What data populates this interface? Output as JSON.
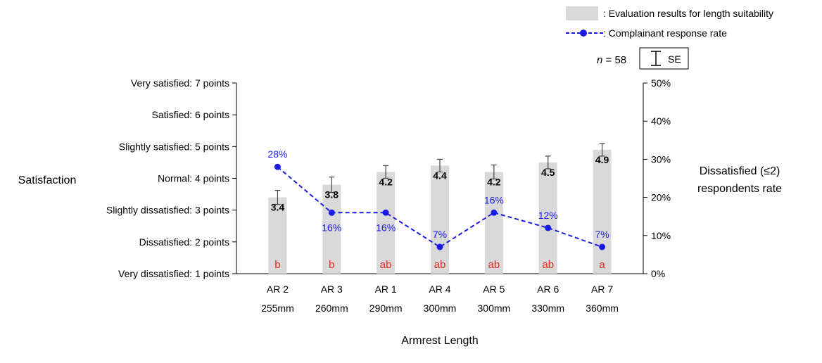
{
  "chart_data": {
    "type": "bar",
    "categories": [
      "AR 2",
      "AR 3",
      "AR 1",
      "AR 4",
      "AR 5",
      "AR 6",
      "AR 7"
    ],
    "category_sublabels": [
      "255mm",
      "260mm",
      "290mm",
      "300mm",
      "300mm",
      "330mm",
      "360mm"
    ],
    "xlabel": "Armrest Length",
    "ylabel": "Satisfaction",
    "ylabel_right": [
      "Dissatisfied (≤2)",
      "respondents rate"
    ],
    "ylim": [
      1,
      7
    ],
    "ylim_right": [
      0,
      50
    ],
    "y_ticks": [
      {
        "value": 7,
        "label": "Very satisfied: 7 points"
      },
      {
        "value": 6,
        "label": "Satisfied: 6 points"
      },
      {
        "value": 5,
        "label": "Slightly satisfied: 5 points"
      },
      {
        "value": 4,
        "label": "Normal: 4 points"
      },
      {
        "value": 3,
        "label": "Slightly dissatisfied: 3 points"
      },
      {
        "value": 2,
        "label": "Dissatisfied: 2 points"
      },
      {
        "value": 1,
        "label": "Very dissatisfied: 1 points"
      }
    ],
    "y_right_ticks": [
      {
        "value": 50,
        "label": "50%"
      },
      {
        "value": 40,
        "label": "40%"
      },
      {
        "value": 30,
        "label": "30%"
      },
      {
        "value": 20,
        "label": "20%"
      },
      {
        "value": 10,
        "label": "10%"
      },
      {
        "value": 0,
        "label": "0%"
      }
    ],
    "series": [
      {
        "name": ": Evaluation results for length suitability",
        "kind": "bar",
        "axis": "left",
        "color": "#d9d9d9",
        "values": [
          3.4,
          3.8,
          4.2,
          4.4,
          4.2,
          4.5,
          4.9
        ],
        "value_labels": [
          "3.4",
          "3.8",
          "4.2",
          "4.4",
          "4.2",
          "4.5",
          "4.9"
        ],
        "se": [
          0.22,
          0.24,
          0.2,
          0.2,
          0.22,
          0.2,
          0.2
        ],
        "group_letters": [
          "b",
          "b",
          "ab",
          "ab",
          "ab",
          "ab",
          "a"
        ],
        "letter_color": "#e8281e"
      },
      {
        "name": ": Complainant response rate",
        "kind": "line",
        "axis": "right",
        "color": "#1a1ae6",
        "values": [
          28,
          16,
          16,
          7,
          16,
          12,
          7
        ],
        "value_labels": [
          "28%",
          "16%",
          "16%",
          "7%",
          "16%",
          "12%",
          "7%"
        ]
      }
    ],
    "annotation": {
      "n_prefix": "n",
      "n_value": " = 58",
      "se_label": "SE"
    },
    "legend_position": "top-right",
    "grid": false
  }
}
